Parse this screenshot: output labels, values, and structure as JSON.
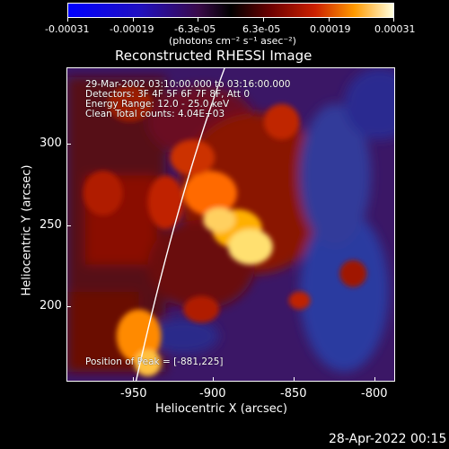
{
  "colorbar": {
    "tick_labels": [
      "-0.00031",
      "-0.00019",
      "-6.3e-05",
      "6.3e-05",
      "0.00019",
      "0.00031"
    ],
    "units_label": "(photons cm⁻² s⁻¹ asec⁻²)"
  },
  "plot": {
    "title": "Reconstructed RHESSI Image",
    "x_label": "Heliocentric X (arcsec)",
    "y_label": "Heliocentric Y (arcsec)",
    "x_ticks": [
      "-950",
      "-900",
      "-850",
      "-800"
    ],
    "y_ticks": [
      "300",
      "250",
      "200"
    ]
  },
  "annotations": {
    "time": "29-Mar-2002 03:10:00.000 to 03:16:00.000",
    "detectors": "Detectors: 3F 4F 5F 6F 7F 8F, Att 0",
    "energy": "Energy Range: 12.0 - 25.0 keV",
    "clean": "Clean     Total counts: 4.04E+03",
    "peak": "Position of Peak = [-881,225]"
  },
  "footer": {
    "timestamp": "28-Apr-2022 00:15"
  }
}
